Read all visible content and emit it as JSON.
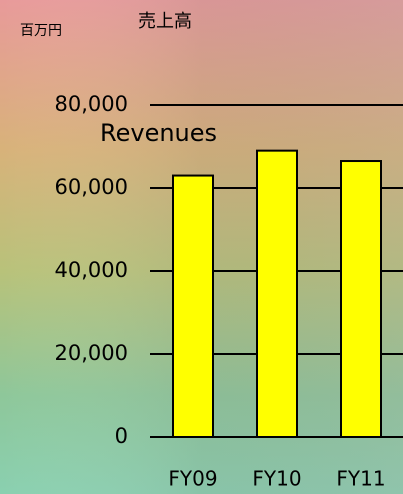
{
  "chart_data": {
    "type": "bar",
    "title": "売上高",
    "subtitle": "Revenues",
    "unit": "百万円",
    "categories": [
      "FY09",
      "FY10",
      "FY11"
    ],
    "values": [
      63000,
      69000,
      66500
    ],
    "color": "#ffff00",
    "ylim": [
      0,
      80000
    ],
    "yticks": [
      0,
      {
        "value": 20000,
        "label": "20,000"
      },
      {
        "value": 40000,
        "label": "40,000"
      },
      {
        "value": 60000,
        "label": "60,000"
      },
      {
        "value": 80000,
        "label": "80,000"
      }
    ],
    "grid": true
  }
}
